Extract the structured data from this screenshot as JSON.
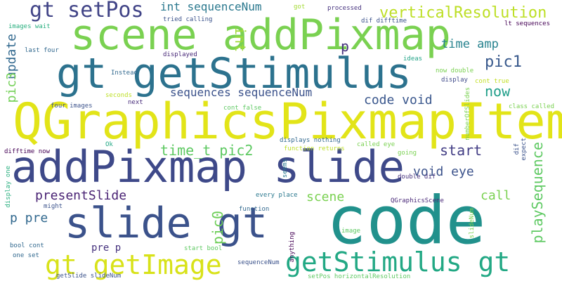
{
  "words": [
    {
      "id": "code-big",
      "text": "code",
      "color": "#21918c"
    },
    {
      "id": "qgraphicspixmapitem",
      "text": "QGraphicsPixmapItem",
      "color": "#e2e418"
    },
    {
      "id": "addpixmap-slide",
      "text": "addPixmap slide",
      "color": "#3e4989"
    },
    {
      "id": "scene-addpixmap",
      "text": "scene addPixmap",
      "color": "#7ad151"
    },
    {
      "id": "gt-getstimulus",
      "text": "gt getStimulus",
      "color": "#2c728e"
    },
    {
      "id": "slide-gt",
      "text": "slide gt",
      "color": "#3b528b"
    },
    {
      "id": "gt-getimage",
      "text": "gt getImage",
      "color": "#d8e219"
    },
    {
      "id": "getstimulus-gt",
      "text": "getStimulus gt",
      "color": "#22a884"
    },
    {
      "id": "gt-setpos",
      "text": "gt setPos",
      "color": "#414487"
    },
    {
      "id": "verticalresolution",
      "text": "verticalResolution",
      "color": "#bddf26"
    },
    {
      "id": "int-sequencenum",
      "text": "int sequenceNum",
      "color": "#2a788e"
    },
    {
      "id": "update",
      "text": "update",
      "color": "#31688e"
    },
    {
      "id": "pic3",
      "text": "pic3",
      "color": "#73d056"
    },
    {
      "id": "int-vert",
      "text": "int",
      "color": "#a0da39"
    },
    {
      "id": "p-letter",
      "text": "p",
      "color": "#46327e"
    },
    {
      "id": "time-amp",
      "text": "time amp",
      "color": "#26828e"
    },
    {
      "id": "pic1",
      "text": "pic1",
      "color": "#38598c"
    },
    {
      "id": "now",
      "text": "now",
      "color": "#1f9e89"
    },
    {
      "id": "sequences-sequencenum",
      "text": "sequences sequenceNum",
      "color": "#3b528b"
    },
    {
      "id": "code-void",
      "text": "code void",
      "color": "#39568c"
    },
    {
      "id": "time-t-pic2",
      "text": "time_t pic2",
      "color": "#5ec962"
    },
    {
      "id": "start",
      "text": "start",
      "color": "#433e85"
    },
    {
      "id": "void-eye",
      "text": "void eye",
      "color": "#3b528b"
    },
    {
      "id": "playsequence",
      "text": "playSequence",
      "color": "#5ec962"
    },
    {
      "id": "presentslide",
      "text": "presentSlide",
      "color": "#482173"
    },
    {
      "id": "scene-small",
      "text": "scene",
      "color": "#7ad151"
    },
    {
      "id": "call",
      "text": "call",
      "color": "#7ad151"
    },
    {
      "id": "p-pre",
      "text": "p pre",
      "color": "#31688e"
    },
    {
      "id": "pic0",
      "text": "pic0",
      "color": "#6ece58"
    },
    {
      "id": "pre-p",
      "text": "pre p",
      "color": "#46327e"
    },
    {
      "id": "images-wait",
      "text": "images wait",
      "color": "#29af7f"
    },
    {
      "id": "last-four",
      "text": "last four",
      "color": "#31688e"
    },
    {
      "id": "tried-calling",
      "text": "tried calling",
      "color": "#3b528b"
    },
    {
      "id": "got",
      "text": "got",
      "color": "#a5db36"
    },
    {
      "id": "processed",
      "text": "processed",
      "color": "#46327e"
    },
    {
      "id": "dif-difftime",
      "text": "dif difftime",
      "color": "#3b528b"
    },
    {
      "id": "lt-sequences",
      "text": "lt sequences",
      "color": "#440154"
    },
    {
      "id": "displayed",
      "text": "displayed",
      "color": "#482878"
    },
    {
      "id": "ideas",
      "text": "ideas",
      "color": "#20a386"
    },
    {
      "id": "instead",
      "text": "Instead",
      "color": "#31688e"
    },
    {
      "id": "now-double",
      "text": "now double",
      "color": "#7ad151"
    },
    {
      "id": "display",
      "text": "display",
      "color": "#3e4989"
    },
    {
      "id": "cont-true",
      "text": "cont true",
      "color": "#c2df23"
    },
    {
      "id": "seconds",
      "text": "seconds",
      "color": "#bddf26"
    },
    {
      "id": "next",
      "text": "next",
      "color": "#472c7a"
    },
    {
      "id": "four-images",
      "text": "four images",
      "color": "#3b528b"
    },
    {
      "id": "cont-false",
      "text": "cont false",
      "color": "#5ec962"
    },
    {
      "id": "class-called",
      "text": "class called",
      "color": "#7ad151"
    },
    {
      "id": "numberofslides",
      "text": "numberOfSlides",
      "color": "#7ad151"
    },
    {
      "id": "difftime-now",
      "text": "difftime now",
      "color": "#440154"
    },
    {
      "id": "ok",
      "text": "Ok",
      "color": "#22a884"
    },
    {
      "id": "displays-nothing",
      "text": "displays nothing",
      "color": "#31688e"
    },
    {
      "id": "function-returns",
      "text": "function returns",
      "color": "#bddf26"
    },
    {
      "id": "called-eye",
      "text": "called eye",
      "color": "#7ad151"
    },
    {
      "id": "going",
      "text": "going",
      "color": "#7ad151"
    },
    {
      "id": "dif",
      "text": "dif",
      "color": "#3b528b"
    },
    {
      "id": "expect",
      "text": "expect",
      "color": "#3b528b"
    },
    {
      "id": "display-one",
      "text": "display one",
      "color": "#29af7f"
    },
    {
      "id": "seems",
      "text": "seems",
      "color": "#2a788e"
    },
    {
      "id": "double-dif",
      "text": "double dif",
      "color": "#46327e"
    },
    {
      "id": "every-place",
      "text": "every place",
      "color": "#2a788e"
    },
    {
      "id": "might",
      "text": "might",
      "color": "#3b528b"
    },
    {
      "id": "qgraphicsscene",
      "text": "QGraphicsScene",
      "color": "#482878"
    },
    {
      "id": "function",
      "text": "function",
      "color": "#31688e"
    },
    {
      "id": "slidenum",
      "text": "slideNum",
      "color": "#7ad151"
    },
    {
      "id": "image",
      "text": "image",
      "color": "#5ec962"
    },
    {
      "id": "bool-cont",
      "text": "bool cont",
      "color": "#31688e"
    },
    {
      "id": "start-bool",
      "text": "start bool",
      "color": "#5ec962"
    },
    {
      "id": "anything",
      "text": "anything",
      "color": "#440154"
    },
    {
      "id": "one-set",
      "text": "one set",
      "color": "#31688e"
    },
    {
      "id": "sequencenum",
      "text": "sequenceNum",
      "color": "#3b528b"
    },
    {
      "id": "setpos-horizontalresolution",
      "text": "setPos horizontalResolution",
      "color": "#5ec962"
    },
    {
      "id": "getslide-slidenum",
      "text": "getSlide slideNum",
      "color": "#3b528b"
    }
  ]
}
